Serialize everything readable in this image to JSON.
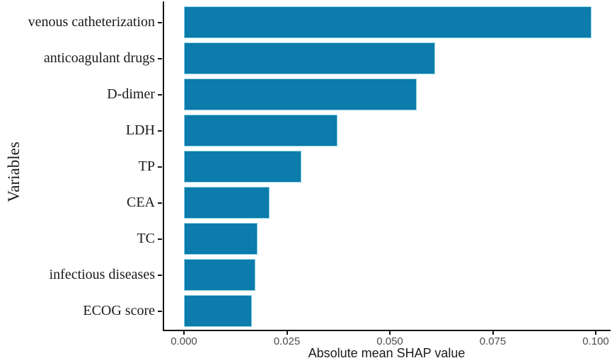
{
  "chart_data": {
    "type": "bar",
    "orientation": "horizontal",
    "title": "",
    "xlabel": "Absolute mean SHAP value",
    "ylabel": "Variables",
    "categories": [
      "venous catheterization",
      "anticoagulant drugs",
      "D-dimer",
      "LDH",
      "TP",
      "CEA",
      "TC",
      "infectious diseases",
      "ECOG score"
    ],
    "values": [
      0.099,
      0.061,
      0.0565,
      0.0373,
      0.0285,
      0.0208,
      0.0179,
      0.0173,
      0.0165
    ],
    "xlim": [
      0,
      0.103
    ],
    "xticks": [
      0,
      0.025,
      0.05,
      0.075,
      0.1
    ],
    "xtick_labels": [
      "0.000",
      "0.025",
      "0.050",
      "0.075",
      "0.100"
    ],
    "grid": false,
    "legend": null,
    "bar_color": "#0b7cab",
    "bar_edge_color": "#8fd2e2",
    "axis_line_color": "#141414",
    "tick_label_color": "#4d4d4d",
    "text_color": "#1a1a1a"
  }
}
